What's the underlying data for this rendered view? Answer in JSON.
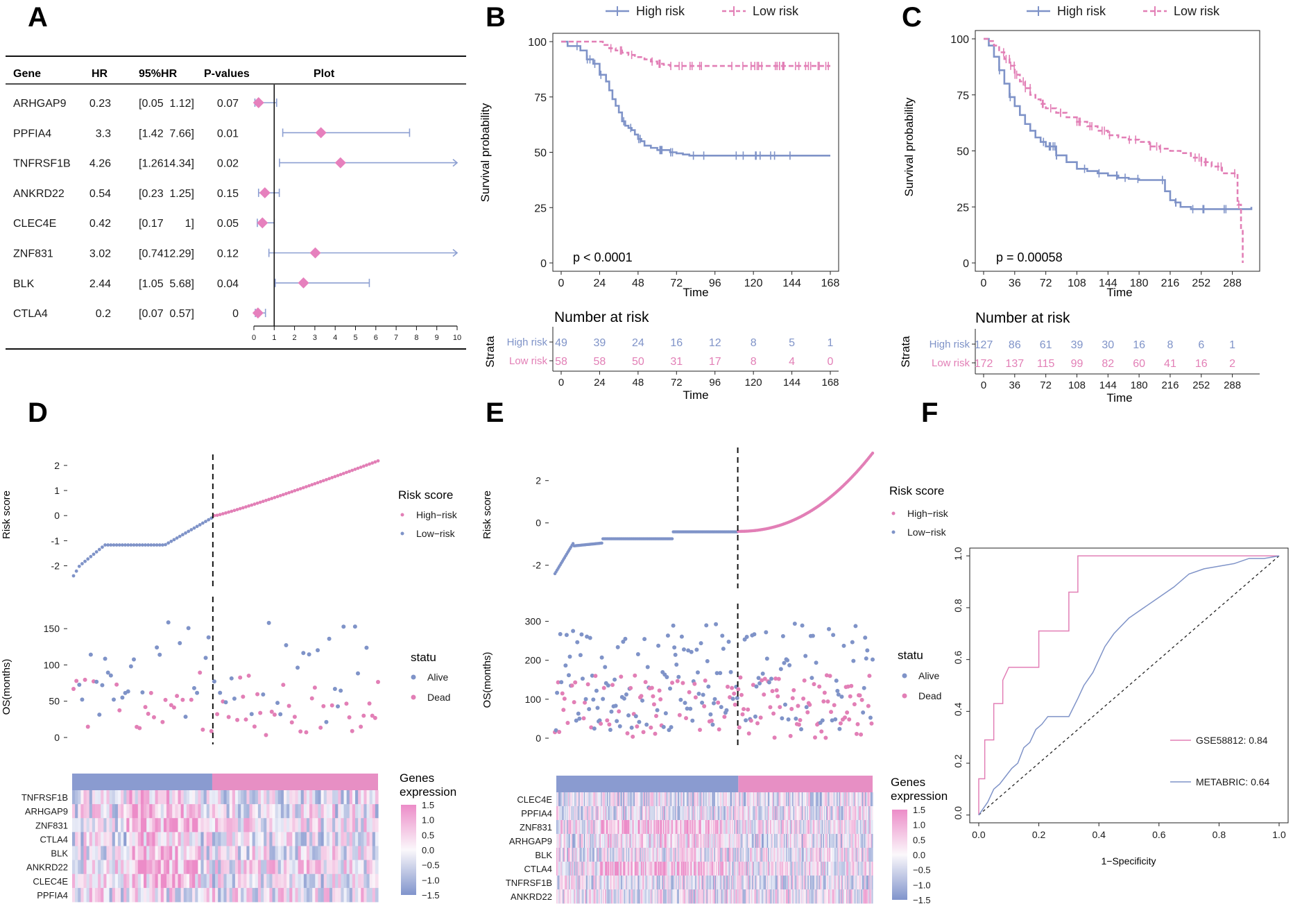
{
  "colors": {
    "high": "#7f93c8",
    "low": "#e27fb6",
    "axis": "#222222",
    "forest_diamond": "#e680bd",
    "forest_line": "#8c9fd2"
  },
  "panels": {
    "A": "A",
    "B": "B",
    "C": "C",
    "D": "D",
    "E": "E",
    "F": "F"
  },
  "chart_data": [
    {
      "id": "A",
      "type": "table",
      "headers": {
        "gene": "Gene",
        "hr": "HR",
        "ci": "95%HR",
        "p": "P-values",
        "plot": "Plot"
      },
      "xlim": [
        0,
        10
      ],
      "xticks": [
        "0",
        "1",
        "2",
        "3",
        "4",
        "5",
        "6",
        "7",
        "8",
        "9",
        "10"
      ],
      "rows": [
        {
          "gene": "ARHGAP9",
          "hr": "0.23",
          "lo": "[0.05",
          "hi": "1.12]",
          "p": "0.07",
          "hr_v": 0.23,
          "lo_v": 0.05,
          "hi_v": 1.12
        },
        {
          "gene": "PPFIA4",
          "hr": "3.3",
          "lo": "[1.42",
          "hi": "7.66]",
          "p": "0.01",
          "hr_v": 3.3,
          "lo_v": 1.42,
          "hi_v": 7.66
        },
        {
          "gene": "TNFRSF1B",
          "hr": "4.26",
          "lo": "[1.26",
          "hi": "14.34]",
          "p": "0.02",
          "hr_v": 4.26,
          "lo_v": 1.26,
          "hi_v": 14.34
        },
        {
          "gene": "ANKRD22",
          "hr": "0.54",
          "lo": "[0.23",
          "hi": "1.25]",
          "p": "0.15",
          "hr_v": 0.54,
          "lo_v": 0.23,
          "hi_v": 1.25
        },
        {
          "gene": "CLEC4E",
          "hr": "0.42",
          "lo": "[0.17",
          "hi": "1]",
          "p": "0.05",
          "hr_v": 0.42,
          "lo_v": 0.17,
          "hi_v": 1.0
        },
        {
          "gene": "ZNF831",
          "hr": "3.02",
          "lo": "[0.74",
          "hi": "12.29]",
          "p": "0.12",
          "hr_v": 3.02,
          "lo_v": 0.74,
          "hi_v": 12.29
        },
        {
          "gene": "BLK",
          "hr": "2.44",
          "lo": "[1.05",
          "hi": "5.68]",
          "p": "0.04",
          "hr_v": 2.44,
          "lo_v": 1.05,
          "hi_v": 5.68
        },
        {
          "gene": "CTLA4",
          "hr": "0.2",
          "lo": "[0.07",
          "hi": "0.57]",
          "p": "0",
          "hr_v": 0.2,
          "lo_v": 0.07,
          "hi_v": 0.57
        }
      ]
    },
    {
      "id": "B",
      "type": "line",
      "legend": [
        "High risk",
        "Low risk"
      ],
      "xlabel": "Time",
      "ylabel": "Survival probability",
      "xticks": [
        0,
        24,
        48,
        72,
        96,
        120,
        144,
        168
      ],
      "yticks": [
        0,
        25,
        50,
        75,
        100
      ],
      "xlim": [
        0,
        168
      ],
      "ylim": [
        0,
        100
      ],
      "pvalue": "p < 0.0001",
      "series": [
        {
          "name": "High risk",
          "x": [
            0,
            4,
            12,
            16,
            20,
            24,
            28,
            30,
            32,
            34,
            36,
            38,
            40,
            42,
            44,
            46,
            48,
            50,
            52,
            56,
            60,
            64,
            68,
            72,
            76,
            80,
            168
          ],
          "y": [
            100,
            98,
            96,
            92,
            90,
            85,
            82,
            78,
            74,
            71,
            68,
            64,
            62,
            61,
            60,
            58,
            56,
            55,
            53,
            52,
            51,
            51,
            50,
            49.5,
            49,
            48.5,
            48.5
          ]
        },
        {
          "name": "Low risk",
          "x": [
            0,
            20,
            26,
            30,
            34,
            38,
            42,
            46,
            52,
            56,
            60,
            64,
            68,
            72,
            168
          ],
          "y": [
            100,
            100,
            98.5,
            97,
            96,
            95,
            94,
            93,
            92,
            91,
            90,
            89.5,
            89,
            89,
            89
          ]
        }
      ],
      "risk_table": {
        "title": "Number at risk",
        "ylabel": "Strata",
        "xlabel": "Time",
        "rows": [
          {
            "name": "High risk",
            "values": [
              "49",
              "39",
              "24",
              "16",
              "12",
              "8",
              "5",
              "1"
            ]
          },
          {
            "name": "Low risk",
            "values": [
              "58",
              "58",
              "50",
              "31",
              "17",
              "8",
              "4",
              "0"
            ]
          }
        ],
        "xticks": [
          "0",
          "24",
          "48",
          "72",
          "96",
          "120",
          "144",
          "168"
        ]
      }
    },
    {
      "id": "C",
      "type": "line",
      "legend": [
        "High risk",
        "Low risk"
      ],
      "xlabel": "Time",
      "ylabel": "Survival probability",
      "xticks": [
        0,
        36,
        72,
        108,
        144,
        180,
        216,
        252,
        288
      ],
      "yticks": [
        0,
        25,
        50,
        75,
        100
      ],
      "xlim": [
        0,
        310
      ],
      "ylim": [
        0,
        100
      ],
      "pvalue": "p = 0.00058",
      "series": [
        {
          "name": "High risk",
          "x": [
            0,
            6,
            12,
            18,
            24,
            30,
            36,
            42,
            48,
            54,
            60,
            66,
            72,
            84,
            96,
            108,
            120,
            132,
            144,
            156,
            168,
            180,
            192,
            204,
            210,
            216,
            222,
            228,
            240,
            252,
            264,
            276,
            288,
            310
          ],
          "y": [
            100,
            97,
            92,
            86,
            80,
            74,
            70,
            66,
            62,
            59,
            56,
            54,
            52,
            48,
            45,
            42,
            41,
            40,
            39,
            38,
            37.5,
            37,
            37,
            37,
            32,
            28,
            27,
            25,
            24,
            24,
            24,
            24,
            24,
            25
          ]
        },
        {
          "name": "Low risk",
          "x": [
            0,
            6,
            12,
            18,
            24,
            30,
            36,
            42,
            48,
            54,
            60,
            66,
            72,
            84,
            96,
            108,
            120,
            132,
            144,
            156,
            168,
            180,
            192,
            204,
            216,
            228,
            240,
            252,
            264,
            276,
            282,
            288,
            294,
            298,
            300
          ],
          "y": [
            100,
            99,
            97,
            94,
            91,
            88,
            84,
            81,
            78,
            75,
            73,
            71,
            69,
            67,
            65,
            63,
            61,
            59,
            57,
            56,
            55,
            54,
            52,
            51,
            50,
            49,
            47,
            45,
            43,
            40,
            40,
            40,
            26,
            15,
            0
          ]
        }
      ],
      "risk_table": {
        "title": "Number at risk",
        "ylabel": "Strata",
        "xlabel": "Time",
        "rows": [
          {
            "name": "High risk",
            "values": [
              "127",
              "86",
              "61",
              "39",
              "30",
              "16",
              "8",
              "6",
              "1"
            ]
          },
          {
            "name": "Low risk",
            "values": [
              "172",
              "137",
              "115",
              "99",
              "82",
              "60",
              "41",
              "16",
              "2"
            ]
          }
        ],
        "xticks": [
          "0",
          "36",
          "72",
          "108",
          "144",
          "180",
          "216",
          "252",
          "288"
        ]
      }
    },
    {
      "id": "D",
      "type": "scatter",
      "risk_plot": {
        "ylabel": "Risk score",
        "yticks": [
          "-2",
          "-1",
          "0",
          "1",
          "2"
        ],
        "ylim": [
          -2.4,
          2.3
        ],
        "n": 107,
        "cutoff_index": 49,
        "legend_title": "Risk score",
        "legend": [
          "High−risk",
          "Low−risk"
        ]
      },
      "os_plot": {
        "ylabel": "OS(months)",
        "yticks": [
          "0",
          "50",
          "100",
          "150"
        ],
        "ylim": [
          0,
          175
        ],
        "legend_title": "statu",
        "legend": [
          "Alive",
          "Dead"
        ]
      },
      "heatmap": {
        "genes": [
          "TNFRSF1B",
          "ARHGAP9",
          "ZNF831",
          "CTLA4",
          "BLK",
          "ANKRD22",
          "CLEC4E",
          "PPFIA4"
        ],
        "legend_title": [
          "Genes",
          "expression"
        ],
        "scale": [
          "1.5",
          "1.0",
          "0.5",
          "0.0",
          "−0.5",
          "−1.0",
          "−1.5"
        ]
      }
    },
    {
      "id": "E",
      "type": "scatter",
      "risk_plot": {
        "ylabel": "Risk score",
        "yticks": [
          "-2",
          "0",
          "2"
        ],
        "ylim": [
          -2.5,
          3.4
        ],
        "n": 299,
        "cutoff_index": 172,
        "legend_title": "Risk score",
        "legend": [
          "High−risk",
          "Low−risk"
        ]
      },
      "os_plot": {
        "ylabel": "OS(months)",
        "yticks": [
          "0",
          "100",
          "200",
          "300"
        ],
        "ylim": [
          0,
          310
        ],
        "legend_title": "statu",
        "legend": [
          "Alive",
          "Dead"
        ]
      },
      "heatmap": {
        "genes": [
          "CLEC4E",
          "PPFIA4",
          "ZNF831",
          "ARHGAP9",
          "BLK",
          "CTLA4",
          "TNFRSF1B",
          "ANKRD22"
        ],
        "legend_title": [
          "Genes",
          "expression"
        ],
        "scale": [
          "1.5",
          "1.0",
          "0.5",
          "0.0",
          "−0.5",
          "−1.0",
          "−1.5"
        ]
      }
    },
    {
      "id": "F",
      "type": "line",
      "xlabel": "1−Specificity",
      "ylabel": "",
      "xticks": [
        "0.0",
        "0.2",
        "0.4",
        "0.6",
        "0.8",
        "1.0"
      ],
      "yticks": [
        "0.0",
        "0.2",
        "0.4",
        "0.6",
        "0.8",
        "1.0"
      ],
      "xlim": [
        -0.03,
        1.03
      ],
      "ylim": [
        -0.03,
        1.03
      ],
      "series": [
        {
          "name": "GSE58812: 0.84",
          "x": [
            0,
            0,
            0.02,
            0.02,
            0.05,
            0.05,
            0.08,
            0.08,
            0.1,
            0.16,
            0.2,
            0.2,
            0.23,
            0.23,
            0.3,
            0.3,
            0.33,
            0.33,
            0.35,
            0.35,
            0.4,
            1.0
          ],
          "y": [
            0,
            0.14,
            0.14,
            0.29,
            0.29,
            0.43,
            0.43,
            0.52,
            0.57,
            0.57,
            0.57,
            0.71,
            0.71,
            0.71,
            0.71,
            0.86,
            0.86,
            1.0,
            1.0,
            1.0,
            1.0,
            1.0
          ]
        },
        {
          "name": "METABRIC: 0.64",
          "x": [
            0,
            0.03,
            0.05,
            0.07,
            0.09,
            0.11,
            0.13,
            0.15,
            0.17,
            0.19,
            0.21,
            0.23,
            0.25,
            0.3,
            0.33,
            0.35,
            0.38,
            0.4,
            0.42,
            0.45,
            0.5,
            0.55,
            0.6,
            0.65,
            0.7,
            0.75,
            0.8,
            0.85,
            0.9,
            0.95,
            1.0
          ],
          "y": [
            0,
            0.05,
            0.1,
            0.12,
            0.15,
            0.18,
            0.2,
            0.26,
            0.28,
            0.33,
            0.35,
            0.38,
            0.38,
            0.38,
            0.45,
            0.5,
            0.55,
            0.6,
            0.65,
            0.7,
            0.76,
            0.8,
            0.84,
            0.88,
            0.93,
            0.95,
            0.96,
            0.97,
            0.99,
            0.99,
            1.0
          ]
        }
      ]
    }
  ]
}
